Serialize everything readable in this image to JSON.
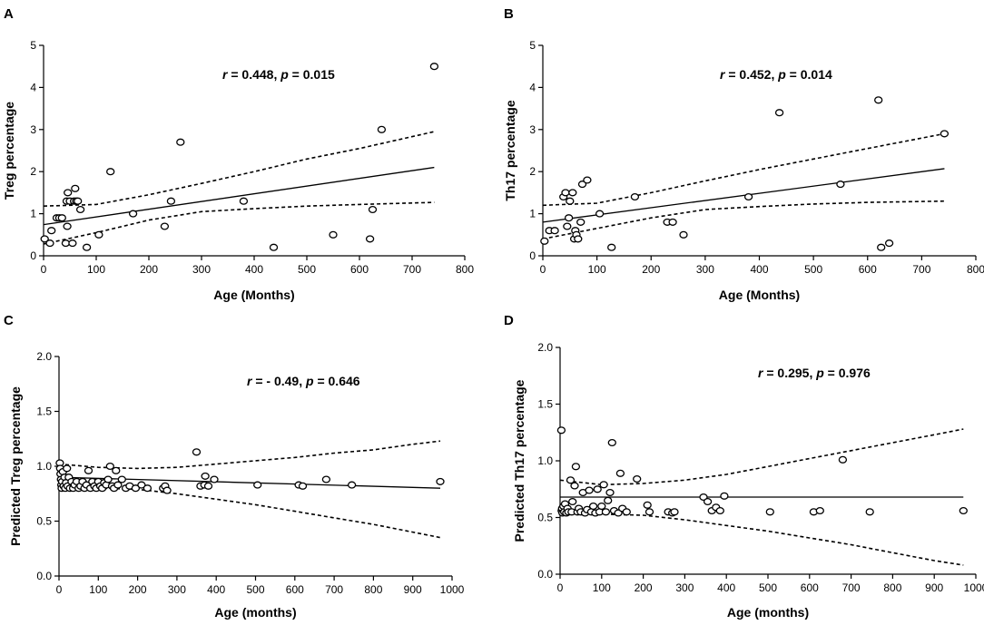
{
  "chart_data": [
    {
      "type": "scatter",
      "panel_label": "A",
      "title": "",
      "xlabel": "Age (Months)",
      "ylabel": "Treg percentage",
      "xlim": [
        0,
        800
      ],
      "ylim": [
        0,
        5
      ],
      "xticks": [
        "0",
        "100",
        "200",
        "300",
        "400",
        "500",
        "600",
        "700",
        "800"
      ],
      "yticks": [
        "0",
        "1",
        "2",
        "3",
        "4",
        "5"
      ],
      "annotation": {
        "r_label": "r",
        "r_value": " = 0.448, ",
        "p_label": "p",
        "p_value": " = 0.015"
      },
      "points": [
        [
          2,
          0.4
        ],
        [
          12,
          0.3
        ],
        [
          15,
          0.6
        ],
        [
          25,
          0.9
        ],
        [
          30,
          0.9
        ],
        [
          35,
          0.9
        ],
        [
          42,
          0.3
        ],
        [
          44,
          1.3
        ],
        [
          45,
          0.7
        ],
        [
          46,
          1.5
        ],
        [
          50,
          1.3
        ],
        [
          55,
          0.3
        ],
        [
          58,
          1.3
        ],
        [
          60,
          1.6
        ],
        [
          62,
          1.3
        ],
        [
          65,
          1.3
        ],
        [
          70,
          1.1
        ],
        [
          82,
          0.2
        ],
        [
          105,
          0.5
        ],
        [
          127,
          2.0
        ],
        [
          170,
          1.0
        ],
        [
          230,
          0.7
        ],
        [
          242,
          1.3
        ],
        [
          260,
          2.7
        ],
        [
          380,
          1.3
        ],
        [
          437,
          0.2
        ],
        [
          550,
          0.5
        ],
        [
          620,
          0.4
        ],
        [
          625,
          1.1
        ],
        [
          642,
          3.0
        ],
        [
          742,
          4.5
        ]
      ],
      "fit": {
        "x": [
          0,
          742
        ],
        "y": [
          0.74,
          2.1
        ]
      },
      "ci_upper": {
        "x": [
          0,
          100,
          200,
          300,
          400,
          500,
          600,
          742
        ],
        "y": [
          1.18,
          1.22,
          1.45,
          1.72,
          2.0,
          2.3,
          2.55,
          2.95
        ]
      },
      "ci_lower": {
        "x": [
          0,
          100,
          200,
          300,
          400,
          500,
          600,
          742
        ],
        "y": [
          0.28,
          0.55,
          0.85,
          1.05,
          1.12,
          1.18,
          1.22,
          1.27
        ]
      }
    },
    {
      "type": "scatter",
      "panel_label": "B",
      "title": "",
      "xlabel": "Age (Months)",
      "ylabel": "Th17 percentage",
      "xlim": [
        0,
        800
      ],
      "ylim": [
        0,
        5
      ],
      "xticks": [
        "0",
        "100",
        "200",
        "300",
        "400",
        "500",
        "600",
        "700",
        "800"
      ],
      "yticks": [
        "0",
        "1",
        "2",
        "3",
        "4",
        "5"
      ],
      "annotation": {
        "r_label": "r",
        "r_value": " = 0.452, ",
        "p_label": "p",
        "p_value": " = 0.014"
      },
      "points": [
        [
          3,
          0.35
        ],
        [
          12,
          0.6
        ],
        [
          22,
          0.6
        ],
        [
          38,
          1.4
        ],
        [
          42,
          1.5
        ],
        [
          45,
          0.7
        ],
        [
          48,
          0.9
        ],
        [
          50,
          1.3
        ],
        [
          55,
          1.5
        ],
        [
          58,
          0.4
        ],
        [
          60,
          0.6
        ],
        [
          62,
          0.5
        ],
        [
          65,
          0.4
        ],
        [
          70,
          0.8
        ],
        [
          73,
          1.7
        ],
        [
          82,
          1.8
        ],
        [
          105,
          1.0
        ],
        [
          127,
          0.2
        ],
        [
          170,
          1.4
        ],
        [
          230,
          0.8
        ],
        [
          240,
          0.8
        ],
        [
          260,
          0.5
        ],
        [
          380,
          1.4
        ],
        [
          437,
          3.4
        ],
        [
          550,
          1.7
        ],
        [
          620,
          3.7
        ],
        [
          625,
          0.2
        ],
        [
          640,
          0.3
        ],
        [
          742,
          2.9
        ]
      ],
      "fit": {
        "x": [
          0,
          742
        ],
        "y": [
          0.8,
          2.07
        ]
      },
      "ci_upper": {
        "x": [
          0,
          100,
          200,
          300,
          400,
          500,
          600,
          742
        ],
        "y": [
          1.2,
          1.25,
          1.5,
          1.78,
          2.05,
          2.3,
          2.55,
          2.9
        ]
      },
      "ci_lower": {
        "x": [
          0,
          100,
          200,
          300,
          400,
          500,
          600,
          742
        ],
        "y": [
          0.4,
          0.65,
          0.9,
          1.1,
          1.17,
          1.23,
          1.27,
          1.3
        ]
      }
    },
    {
      "type": "scatter",
      "panel_label": "C",
      "title": "",
      "xlabel": "Age (months)",
      "ylabel": "Predicted Treg percentage",
      "xlim": [
        0,
        1000
      ],
      "ylim": [
        0,
        2
      ],
      "xticks": [
        "0",
        "100",
        "200",
        "300",
        "400",
        "500",
        "600",
        "700",
        "800",
        "900",
        "1000"
      ],
      "yticks": [
        "0.0",
        "0.5",
        "1.0",
        "1.5",
        "2.0"
      ],
      "annotation": {
        "r_label": "r",
        "r_value": " = - 0.49, ",
        "p_label": "p",
        "p_value": " = 0.646"
      },
      "points": [
        [
          2,
          1.03
        ],
        [
          3,
          0.98
        ],
        [
          4,
          0.93
        ],
        [
          5,
          0.88
        ],
        [
          6,
          0.83
        ],
        [
          7,
          0.8
        ],
        [
          8,
          0.86
        ],
        [
          10,
          0.95
        ],
        [
          12,
          0.82
        ],
        [
          14,
          0.9
        ],
        [
          16,
          0.8
        ],
        [
          18,
          0.85
        ],
        [
          20,
          0.98
        ],
        [
          22,
          0.82
        ],
        [
          25,
          0.9
        ],
        [
          28,
          0.8
        ],
        [
          32,
          0.86
        ],
        [
          36,
          0.8
        ],
        [
          40,
          0.83
        ],
        [
          45,
          0.86
        ],
        [
          50,
          0.8
        ],
        [
          55,
          0.82
        ],
        [
          60,
          0.86
        ],
        [
          65,
          0.8
        ],
        [
          70,
          0.83
        ],
        [
          75,
          0.96
        ],
        [
          80,
          0.8
        ],
        [
          85,
          0.86
        ],
        [
          90,
          0.82
        ],
        [
          95,
          0.8
        ],
        [
          100,
          0.86
        ],
        [
          105,
          0.82
        ],
        [
          110,
          0.8
        ],
        [
          115,
          0.85
        ],
        [
          120,
          0.83
        ],
        [
          125,
          0.88
        ],
        [
          130,
          1.0
        ],
        [
          135,
          0.82
        ],
        [
          140,
          0.8
        ],
        [
          145,
          0.96
        ],
        [
          150,
          0.83
        ],
        [
          160,
          0.88
        ],
        [
          170,
          0.8
        ],
        [
          180,
          0.82
        ],
        [
          195,
          0.8
        ],
        [
          210,
          0.83
        ],
        [
          225,
          0.8
        ],
        [
          265,
          0.8
        ],
        [
          270,
          0.82
        ],
        [
          275,
          0.78
        ],
        [
          350,
          1.13
        ],
        [
          360,
          0.82
        ],
        [
          370,
          0.83
        ],
        [
          372,
          0.91
        ],
        [
          380,
          0.82
        ],
        [
          395,
          0.88
        ],
        [
          505,
          0.83
        ],
        [
          610,
          0.83
        ],
        [
          620,
          0.82
        ],
        [
          680,
          0.88
        ],
        [
          745,
          0.83
        ],
        [
          970,
          0.86
        ]
      ],
      "fit": {
        "x": [
          0,
          970
        ],
        "y": [
          0.9,
          0.8
        ]
      },
      "ci_upper": {
        "x": [
          0,
          100,
          200,
          300,
          400,
          500,
          600,
          700,
          800,
          900,
          970
        ],
        "y": [
          1.02,
          0.99,
          0.98,
          0.99,
          1.02,
          1.05,
          1.08,
          1.12,
          1.15,
          1.2,
          1.23
        ]
      },
      "ci_lower": {
        "x": [
          0,
          100,
          200,
          300,
          400,
          500,
          600,
          700,
          800,
          900,
          970
        ],
        "y": [
          0.8,
          0.8,
          0.79,
          0.75,
          0.7,
          0.65,
          0.59,
          0.53,
          0.47,
          0.4,
          0.35
        ]
      }
    },
    {
      "type": "scatter",
      "panel_label": "D",
      "title": "",
      "xlabel": "Age (months)",
      "ylabel": "Predicted Th17 percentage",
      "xlim": [
        0,
        1000
      ],
      "ylim": [
        0,
        2
      ],
      "xticks": [
        "0",
        "100",
        "200",
        "300",
        "400",
        "500",
        "600",
        "700",
        "800",
        "900",
        "1000"
      ],
      "yticks": [
        "0.0",
        "0.5",
        "1.0",
        "1.5",
        "2.0"
      ],
      "annotation": {
        "r_label": "r",
        "r_value": " = 0.295, ",
        "p_label": "p",
        "p_value": " = 0.976"
      },
      "points": [
        [
          3,
          1.27
        ],
        [
          4,
          0.56
        ],
        [
          5,
          0.58
        ],
        [
          6,
          0.54
        ],
        [
          8,
          0.6
        ],
        [
          10,
          0.55
        ],
        [
          12,
          0.62
        ],
        [
          15,
          0.54
        ],
        [
          18,
          0.58
        ],
        [
          20,
          0.55
        ],
        [
          25,
          0.83
        ],
        [
          28,
          0.55
        ],
        [
          30,
          0.64
        ],
        [
          35,
          0.78
        ],
        [
          38,
          0.95
        ],
        [
          42,
          0.55
        ],
        [
          45,
          0.58
        ],
        [
          50,
          0.55
        ],
        [
          55,
          0.72
        ],
        [
          60,
          0.54
        ],
        [
          65,
          0.57
        ],
        [
          70,
          0.74
        ],
        [
          75,
          0.55
        ],
        [
          80,
          0.6
        ],
        [
          85,
          0.54
        ],
        [
          90,
          0.75
        ],
        [
          95,
          0.55
        ],
        [
          100,
          0.6
        ],
        [
          105,
          0.79
        ],
        [
          110,
          0.55
        ],
        [
          115,
          0.65
        ],
        [
          120,
          0.72
        ],
        [
          125,
          1.16
        ],
        [
          130,
          0.56
        ],
        [
          140,
          0.54
        ],
        [
          145,
          0.89
        ],
        [
          150,
          0.58
        ],
        [
          160,
          0.55
        ],
        [
          185,
          0.84
        ],
        [
          210,
          0.61
        ],
        [
          215,
          0.55
        ],
        [
          260,
          0.55
        ],
        [
          270,
          0.54
        ],
        [
          275,
          0.55
        ],
        [
          345,
          0.68
        ],
        [
          355,
          0.64
        ],
        [
          365,
          0.56
        ],
        [
          375,
          0.59
        ],
        [
          385,
          0.56
        ],
        [
          395,
          0.69
        ],
        [
          505,
          0.55
        ],
        [
          610,
          0.55
        ],
        [
          625,
          0.56
        ],
        [
          680,
          1.01
        ],
        [
          745,
          0.55
        ],
        [
          970,
          0.56
        ]
      ],
      "fit": {
        "x": [
          0,
          970
        ],
        "y": [
          0.68,
          0.68
        ]
      },
      "ci_upper": {
        "x": [
          0,
          100,
          200,
          300,
          400,
          500,
          600,
          700,
          800,
          900,
          970
        ],
        "y": [
          0.83,
          0.79,
          0.8,
          0.83,
          0.88,
          0.95,
          1.02,
          1.09,
          1.16,
          1.23,
          1.28
        ]
      },
      "ci_lower": {
        "x": [
          0,
          100,
          200,
          300,
          400,
          500,
          600,
          700,
          800,
          900,
          970
        ],
        "y": [
          0.54,
          0.53,
          0.52,
          0.48,
          0.43,
          0.38,
          0.32,
          0.26,
          0.19,
          0.12,
          0.08
        ]
      }
    }
  ]
}
